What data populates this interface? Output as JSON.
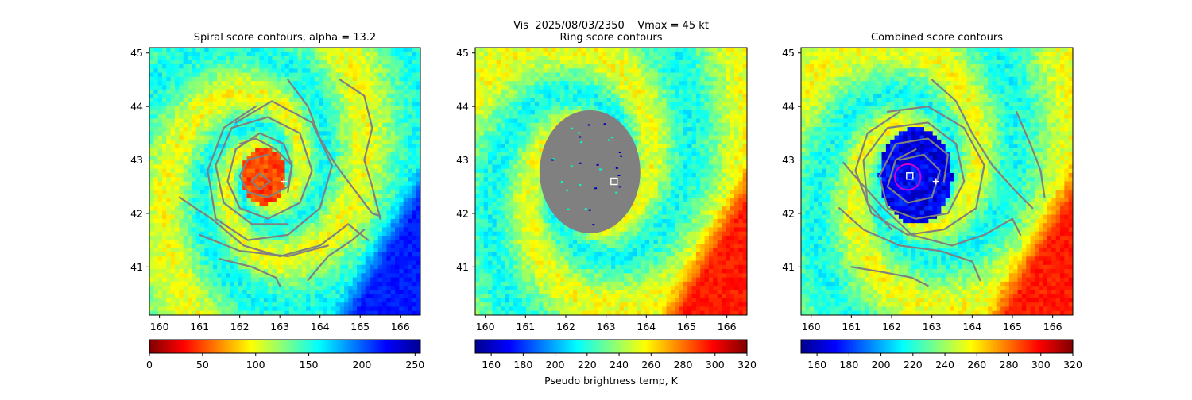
{
  "suptitle": "Vis  2025/08/03/2350    Vmax = 45 kt",
  "colormap": [
    "#7f0000",
    "#ff0000",
    "#ff8000",
    "#ffff00",
    "#80ff80",
    "#00ffff",
    "#0080ff",
    "#0000ff",
    "#00008f"
  ],
  "colors": {
    "contour": "#808080",
    "overlay_gray": "#808080",
    "circle": "#cc00cc",
    "marker": "#ffffff"
  },
  "chart_data": [
    {
      "type": "heatmap",
      "title": "Spiral score contours, alpha = 13.2",
      "xlim": [
        159.75,
        166.5
      ],
      "ylim": [
        40.1,
        45.1
      ],
      "xticks": [
        "160",
        "161",
        "162",
        "163",
        "164",
        "165",
        "166"
      ],
      "yticks": [
        "41",
        "42",
        "43",
        "44",
        "45"
      ],
      "image_invert": true,
      "plus_marker": [
        163.1,
        42.6
      ],
      "colorbar": {
        "range": [
          0,
          255
        ],
        "ticks": [
          "0",
          "50",
          "100",
          "150",
          "200",
          "250"
        ],
        "ticks_value": [
          0,
          50,
          100,
          150,
          200,
          250
        ],
        "reversed": false,
        "label": ""
      },
      "contours": [
        [
          [
            162.7,
            43.1
          ],
          [
            162.2,
            43.0
          ],
          [
            162.0,
            42.7
          ],
          [
            162.2,
            42.4
          ],
          [
            162.7,
            42.3
          ],
          [
            163.2,
            42.5
          ],
          [
            163.3,
            42.9
          ],
          [
            162.9,
            43.2
          ],
          [
            162.4,
            43.4
          ],
          [
            162.0,
            43.3
          ]
        ],
        [
          [
            162.3,
            42.6
          ],
          [
            162.5,
            42.75
          ],
          [
            162.75,
            42.6
          ],
          [
            162.5,
            42.45
          ],
          [
            162.3,
            42.6
          ]
        ],
        [
          [
            163.2,
            42.4
          ],
          [
            163.3,
            42.9
          ],
          [
            163.1,
            43.3
          ],
          [
            162.5,
            43.5
          ],
          [
            161.9,
            43.2
          ],
          [
            161.7,
            42.6
          ],
          [
            162.0,
            42.1
          ],
          [
            162.7,
            41.9
          ],
          [
            163.5,
            42.2
          ],
          [
            163.8,
            42.8
          ],
          [
            163.5,
            43.5
          ],
          [
            162.7,
            43.8
          ],
          [
            161.8,
            43.6
          ],
          [
            161.4,
            42.9
          ],
          [
            161.6,
            42.2
          ],
          [
            162.3,
            41.8
          ],
          [
            163.2,
            41.8
          ]
        ],
        [
          [
            161.9,
            43.7
          ],
          [
            162.8,
            44.1
          ],
          [
            163.8,
            43.7
          ],
          [
            164.3,
            42.9
          ],
          [
            164.0,
            42.1
          ],
          [
            163.2,
            41.6
          ],
          [
            162.2,
            41.5
          ],
          [
            161.4,
            41.9
          ],
          [
            161.2,
            42.8
          ],
          [
            161.6,
            43.6
          ],
          [
            162.4,
            44.0
          ]
        ],
        [
          [
            160.5,
            42.3
          ],
          [
            161.3,
            41.9
          ],
          [
            162.1,
            41.4
          ],
          [
            163.0,
            41.2
          ],
          [
            164.0,
            41.4
          ],
          [
            164.7,
            41.8
          ],
          [
            165.2,
            41.5
          ]
        ],
        [
          [
            161.0,
            41.6
          ],
          [
            162.0,
            41.3
          ],
          [
            163.2,
            41.2
          ],
          [
            164.2,
            41.4
          ]
        ],
        [
          [
            161.5,
            41.15
          ],
          [
            162.3,
            41.0
          ],
          [
            162.9,
            40.8
          ],
          [
            163.0,
            40.65
          ]
        ],
        [
          [
            163.2,
            44.5
          ],
          [
            163.7,
            44.0
          ],
          [
            164.0,
            43.4
          ],
          [
            164.4,
            42.9
          ],
          [
            164.9,
            42.4
          ],
          [
            165.3,
            42.0
          ],
          [
            165.5,
            41.95
          ]
        ],
        [
          [
            164.5,
            44.5
          ],
          [
            165.1,
            44.2
          ],
          [
            165.3,
            43.6
          ],
          [
            165.1,
            43.0
          ],
          [
            165.3,
            42.5
          ],
          [
            165.5,
            41.9
          ]
        ],
        [
          [
            163.7,
            40.75
          ],
          [
            164.2,
            41.2
          ],
          [
            164.8,
            41.5
          ],
          [
            165.1,
            41.7
          ]
        ]
      ]
    },
    {
      "type": "heatmap",
      "title": "Ring score contours",
      "xlim": [
        159.75,
        166.5
      ],
      "ylim": [
        40.1,
        45.1
      ],
      "xticks": [
        "160",
        "161",
        "162",
        "163",
        "164",
        "165",
        "166"
      ],
      "yticks": [
        "41",
        "42",
        "43",
        "44",
        "45"
      ],
      "image_invert": false,
      "masked_region": {
        "center": [
          162.6,
          42.78
        ],
        "radius_x": 1.25,
        "radius_y": 1.15
      },
      "square_marker": [
        163.2,
        42.6
      ],
      "colorbar": {
        "range": [
          150,
          320
        ],
        "ticks": [
          "160",
          "180",
          "200",
          "220",
          "240",
          "260",
          "280",
          "300",
          "320"
        ],
        "ticks_value": [
          160,
          180,
          200,
          220,
          240,
          260,
          280,
          300,
          320
        ],
        "reversed": true,
        "label": "Pseudo brightness temp, K"
      }
    },
    {
      "type": "heatmap",
      "title": "Combined score contours",
      "xlim": [
        159.75,
        166.5
      ],
      "ylim": [
        40.1,
        45.1
      ],
      "xticks": [
        "160",
        "161",
        "162",
        "163",
        "164",
        "165",
        "166"
      ],
      "yticks": [
        "41",
        "42",
        "43",
        "44",
        "45"
      ],
      "image_invert": false,
      "circle": {
        "center": [
          162.4,
          42.68
        ],
        "radius_deg": 0.32
      },
      "square_marker": [
        162.45,
        42.7
      ],
      "plus_marker": [
        163.1,
        42.6
      ],
      "colorbar": {
        "range": [
          150,
          320
        ],
        "ticks": [
          "160",
          "180",
          "200",
          "220",
          "240",
          "260",
          "280",
          "300",
          "320"
        ],
        "ticks_value": [
          160,
          180,
          200,
          220,
          240,
          260,
          280,
          300,
          320
        ],
        "reversed": true,
        "label": ""
      },
      "contours": [
        [
          [
            162.2,
            43.0
          ],
          [
            162.8,
            43.1
          ],
          [
            163.2,
            42.8
          ],
          [
            163.0,
            42.3
          ],
          [
            162.4,
            42.2
          ],
          [
            161.9,
            42.5
          ],
          [
            162.1,
            43.0
          ],
          [
            162.6,
            43.2
          ]
        ],
        [
          [
            163.3,
            42.6
          ],
          [
            163.4,
            43.1
          ],
          [
            162.9,
            43.4
          ],
          [
            162.1,
            43.3
          ],
          [
            161.7,
            42.7
          ],
          [
            161.9,
            42.1
          ],
          [
            162.6,
            41.9
          ],
          [
            163.4,
            42.0
          ],
          [
            163.8,
            42.6
          ],
          [
            163.6,
            43.3
          ],
          [
            162.9,
            43.7
          ],
          [
            161.9,
            43.6
          ],
          [
            161.3,
            43.0
          ],
          [
            161.4,
            42.2
          ],
          [
            162.0,
            41.7
          ]
        ],
        [
          [
            161.9,
            43.9
          ],
          [
            162.9,
            44.0
          ],
          [
            163.8,
            43.6
          ],
          [
            164.3,
            42.9
          ],
          [
            164.1,
            42.1
          ],
          [
            163.3,
            41.7
          ],
          [
            162.4,
            41.6
          ],
          [
            161.5,
            42.0
          ],
          [
            161.1,
            42.8
          ],
          [
            161.4,
            43.5
          ],
          [
            162.2,
            43.9
          ]
        ],
        [
          [
            160.8,
            42.95
          ],
          [
            161.2,
            42.6
          ],
          [
            161.8,
            42.1
          ],
          [
            162.5,
            41.6
          ],
          [
            163.5,
            41.4
          ],
          [
            164.3,
            41.6
          ],
          [
            165.0,
            41.9
          ],
          [
            165.2,
            41.6
          ]
        ],
        [
          [
            160.7,
            42.1
          ],
          [
            161.3,
            41.7
          ],
          [
            162.2,
            41.4
          ],
          [
            163.2,
            41.3
          ],
          [
            164.0,
            41.1
          ],
          [
            164.2,
            40.75
          ]
        ],
        [
          [
            161.0,
            41.0
          ],
          [
            161.8,
            40.9
          ],
          [
            162.5,
            40.8
          ],
          [
            162.9,
            40.65
          ]
        ],
        [
          [
            163.0,
            44.5
          ],
          [
            163.6,
            44.1
          ],
          [
            164.0,
            43.5
          ],
          [
            164.5,
            42.9
          ],
          [
            165.1,
            42.4
          ],
          [
            165.5,
            42.1
          ]
        ],
        [
          [
            165.1,
            43.9
          ],
          [
            165.5,
            43.2
          ],
          [
            165.7,
            42.8
          ],
          [
            165.8,
            42.3
          ]
        ]
      ]
    }
  ]
}
